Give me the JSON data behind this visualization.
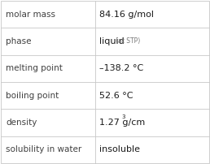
{
  "rows": [
    {
      "label": "molar mass",
      "value": "84.16 g/mol",
      "superscript": null,
      "small_suffix": null
    },
    {
      "label": "phase",
      "value": "liquid",
      "superscript": null,
      "small_suffix": " (at STP)"
    },
    {
      "label": "melting point",
      "value": "–138.2 °C",
      "superscript": null,
      "small_suffix": null
    },
    {
      "label": "boiling point",
      "value": "52.6 °C",
      "superscript": null,
      "small_suffix": null
    },
    {
      "label": "density",
      "value": "1.27 g/cm",
      "superscript": "3",
      "small_suffix": null
    },
    {
      "label": "solubility in water",
      "value": "insoluble",
      "superscript": null,
      "small_suffix": null
    }
  ],
  "bg_color": "#ffffff",
  "border_color": "#c8c8c8",
  "label_color": "#404040",
  "value_color": "#1a1a1a",
  "small_color": "#777777",
  "label_fontsize": 7.5,
  "value_fontsize": 8,
  "small_fontsize": 5.5,
  "super_fontsize": 5,
  "col_split": 0.455,
  "fig_width": 2.58,
  "fig_height": 2.02
}
